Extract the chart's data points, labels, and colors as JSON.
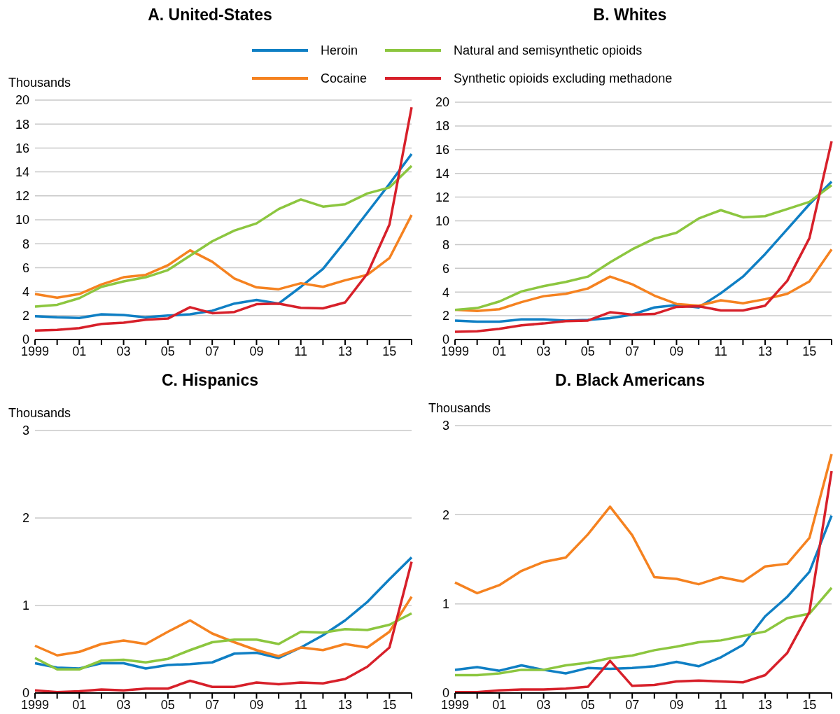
{
  "chart_data": [
    {
      "type": "line",
      "title": "A. United-States",
      "ylabel": "Thousands",
      "categories": [
        "1999",
        null,
        "01",
        null,
        "03",
        null,
        "05",
        null,
        "07",
        null,
        "09",
        null,
        "11",
        null,
        "13",
        null,
        "15",
        null
      ],
      "ylim": [
        0,
        20
      ],
      "yticks": [
        0,
        2,
        4,
        6,
        8,
        10,
        12,
        14,
        16,
        18,
        20
      ],
      "grid": "y",
      "legend": "top",
      "series": [
        {
          "name": "Heroin",
          "color": "#0f7fc4",
          "values": [
            1.95,
            1.85,
            1.8,
            2.1,
            2.05,
            1.85,
            2.0,
            2.1,
            2.4,
            3.0,
            3.3,
            3.0,
            4.4,
            5.9,
            8.2,
            10.6,
            13.0,
            15.5
          ]
        },
        {
          "name": "Cocaine",
          "color": "#f58220",
          "values": [
            3.8,
            3.5,
            3.8,
            4.6,
            5.2,
            5.4,
            6.2,
            7.45,
            6.5,
            5.1,
            4.35,
            4.2,
            4.7,
            4.4,
            4.95,
            5.4,
            6.8,
            10.4
          ]
        },
        {
          "name": "Natural and semisynthetic opioids",
          "color": "#8cc63f",
          "values": [
            2.75,
            2.9,
            3.45,
            4.4,
            4.85,
            5.2,
            5.8,
            7.0,
            8.2,
            9.1,
            9.7,
            10.9,
            11.7,
            11.1,
            11.3,
            12.2,
            12.7,
            14.5
          ]
        },
        {
          "name": "Synthetic opioids excluding methadone",
          "color": "#d7202a",
          "values": [
            0.75,
            0.8,
            0.95,
            1.3,
            1.4,
            1.65,
            1.75,
            2.7,
            2.2,
            2.3,
            2.95,
            3.0,
            2.65,
            2.6,
            3.1,
            5.5,
            9.6,
            19.4
          ]
        }
      ]
    },
    {
      "type": "line",
      "title": "B. Whites",
      "categories": [
        "1999",
        null,
        "01",
        null,
        "03",
        null,
        "05",
        null,
        "07",
        null,
        "09",
        null,
        "11",
        null,
        "13",
        null,
        "15",
        null
      ],
      "ylim": [
        0,
        20
      ],
      "yticks": [
        0,
        2,
        4,
        6,
        8,
        10,
        12,
        14,
        16,
        18,
        20
      ],
      "grid": "y",
      "series": [
        {
          "color": "#0f7fc4",
          "values": [
            1.6,
            1.5,
            1.5,
            1.7,
            1.7,
            1.6,
            1.65,
            1.8,
            2.1,
            2.7,
            2.9,
            2.7,
            3.9,
            5.3,
            7.2,
            9.3,
            11.4,
            13.3
          ]
        },
        {
          "color": "#f58220",
          "values": [
            2.5,
            2.4,
            2.55,
            3.15,
            3.65,
            3.85,
            4.3,
            5.3,
            4.65,
            3.7,
            3.0,
            2.85,
            3.3,
            3.05,
            3.4,
            3.85,
            4.9,
            7.6
          ]
        },
        {
          "color": "#8cc63f",
          "values": [
            2.5,
            2.65,
            3.2,
            4.05,
            4.5,
            4.85,
            5.3,
            6.5,
            7.6,
            8.5,
            9.0,
            10.2,
            10.9,
            10.3,
            10.4,
            11.0,
            11.6,
            13.0
          ]
        },
        {
          "color": "#d7202a",
          "values": [
            0.65,
            0.7,
            0.9,
            1.2,
            1.35,
            1.55,
            1.6,
            2.3,
            2.1,
            2.15,
            2.75,
            2.8,
            2.45,
            2.45,
            2.85,
            4.95,
            8.55,
            16.7
          ]
        }
      ]
    },
    {
      "type": "line",
      "title": "C. Hispanics",
      "ylabel": "Thousands",
      "categories": [
        "1999",
        null,
        "01",
        null,
        "03",
        null,
        "05",
        null,
        "07",
        null,
        "09",
        null,
        "11",
        null,
        "13",
        null,
        "15",
        null
      ],
      "ylim": [
        0,
        3
      ],
      "yticks": [
        0,
        1,
        2,
        3
      ],
      "grid": "y",
      "series": [
        {
          "color": "#0f7fc4",
          "values": [
            0.34,
            0.29,
            0.28,
            0.34,
            0.34,
            0.28,
            0.32,
            0.33,
            0.35,
            0.45,
            0.46,
            0.4,
            0.52,
            0.66,
            0.83,
            1.04,
            1.3,
            1.55
          ]
        },
        {
          "color": "#f58220",
          "values": [
            0.54,
            0.43,
            0.47,
            0.56,
            0.6,
            0.56,
            0.7,
            0.83,
            0.68,
            0.58,
            0.49,
            0.42,
            0.52,
            0.49,
            0.56,
            0.52,
            0.7,
            1.1
          ]
        },
        {
          "color": "#8cc63f",
          "values": [
            0.4,
            0.27,
            0.27,
            0.37,
            0.38,
            0.35,
            0.39,
            0.49,
            0.58,
            0.61,
            0.61,
            0.56,
            0.7,
            0.69,
            0.73,
            0.72,
            0.78,
            0.91
          ]
        },
        {
          "color": "#d7202a",
          "values": [
            0.03,
            0.01,
            0.02,
            0.04,
            0.03,
            0.05,
            0.05,
            0.14,
            0.07,
            0.07,
            0.12,
            0.1,
            0.12,
            0.11,
            0.16,
            0.3,
            0.52,
            1.5
          ]
        }
      ]
    },
    {
      "type": "line",
      "title": "D. Black Americans",
      "ylabel": "Thousands",
      "categories": [
        "1999",
        null,
        "01",
        null,
        "03",
        null,
        "05",
        null,
        "07",
        null,
        "09",
        null,
        "11",
        null,
        "13",
        null,
        "15",
        null
      ],
      "ylim": [
        0,
        3
      ],
      "yticks": [
        0,
        1,
        2,
        3
      ],
      "grid": "y",
      "series": [
        {
          "color": "#0f7fc4",
          "values": [
            0.26,
            0.29,
            0.25,
            0.31,
            0.26,
            0.22,
            0.28,
            0.27,
            0.28,
            0.3,
            0.35,
            0.3,
            0.4,
            0.54,
            0.86,
            1.08,
            1.36,
            1.99
          ]
        },
        {
          "color": "#f58220",
          "values": [
            1.24,
            1.12,
            1.21,
            1.37,
            1.47,
            1.52,
            1.78,
            2.09,
            1.77,
            1.3,
            1.28,
            1.22,
            1.3,
            1.25,
            1.42,
            1.45,
            1.74,
            2.68
          ]
        },
        {
          "color": "#8cc63f",
          "values": [
            0.2,
            0.2,
            0.22,
            0.26,
            0.26,
            0.31,
            0.34,
            0.39,
            0.42,
            0.48,
            0.52,
            0.57,
            0.59,
            0.64,
            0.69,
            0.84,
            0.89,
            1.18
          ]
        },
        {
          "color": "#d7202a",
          "values": [
            0.01,
            0.01,
            0.03,
            0.04,
            0.04,
            0.05,
            0.07,
            0.36,
            0.08,
            0.09,
            0.13,
            0.14,
            0.13,
            0.12,
            0.2,
            0.45,
            0.91,
            2.49
          ]
        }
      ]
    }
  ]
}
